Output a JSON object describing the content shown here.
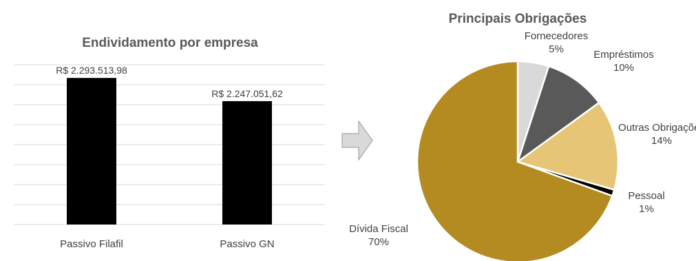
{
  "colors": {
    "bar": "#000000",
    "grid": "#d9d9d9",
    "arrow_fill": "#d9d9d9",
    "arrow_stroke": "#a6a6a6",
    "text": "#404040",
    "title": "#595959"
  },
  "chart_data": [
    {
      "type": "bar",
      "title": "Endividamento por empresa",
      "categories": [
        "Passivo Filafil",
        "Passivo GN"
      ],
      "values": [
        2293513.98,
        2247051.62
      ],
      "value_labels": [
        "R$ 2.293.513,98",
        "R$ 2.247.051,62"
      ],
      "ylim": [
        2000000,
        2320000
      ],
      "grid": true,
      "legend": "none"
    },
    {
      "type": "pie",
      "title": "Principais Obrigações",
      "slices": [
        {
          "label": "Fornecedores",
          "percent": "5%",
          "value": 5,
          "color": "#d9d9d9"
        },
        {
          "label": "Empréstimos",
          "percent": "10%",
          "value": 10,
          "color": "#595959"
        },
        {
          "label": "Outras Obrigações",
          "percent": "14%",
          "value": 14.5,
          "color": "#e6c676"
        },
        {
          "label": "Pessoal",
          "percent": "1%",
          "value": 1,
          "color": "#000000"
        },
        {
          "label": "Dívida Fiscal",
          "percent": "70%",
          "value": 69.5,
          "color": "#b38b21"
        }
      ],
      "legend": "none"
    }
  ]
}
